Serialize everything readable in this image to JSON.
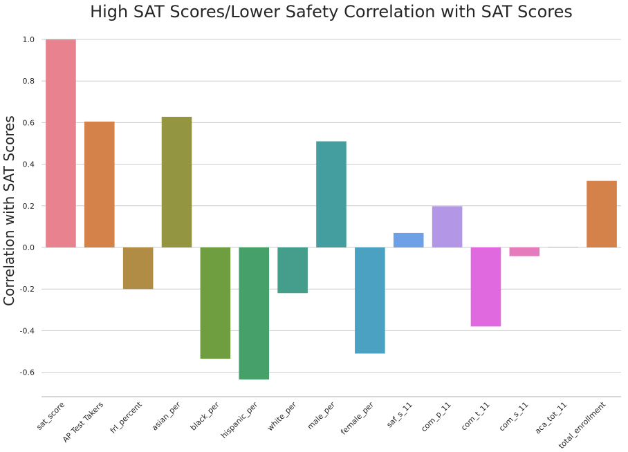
{
  "chart_data": {
    "type": "bar",
    "title": "High SAT Scores/Lower Safety Correlation with SAT Scores",
    "xlabel": "",
    "ylabel": "Correlation with SAT Scores",
    "ylim": [
      -0.72,
      1.0
    ],
    "yticks": [
      -0.6,
      -0.4,
      -0.2,
      0.0,
      0.2,
      0.4,
      0.6,
      0.8,
      1.0
    ],
    "ytick_labels": [
      "-0.6",
      "-0.4",
      "-0.2",
      "0.0",
      "0.2",
      "0.4",
      "0.6",
      "0.8",
      "1.0"
    ],
    "grid": true,
    "categories": [
      "sat_score",
      "AP Test Takers",
      "frl_percent",
      "asian_per",
      "black_per",
      "hispanic_per",
      "white_per",
      "male_per",
      "female_per",
      "saf_s_11",
      "com_p_11",
      "com_t_11",
      "com_s_11",
      "aca_tot_11",
      "total_enrollment"
    ],
    "values": [
      1.0,
      0.605,
      -0.2,
      0.628,
      -0.535,
      -0.635,
      -0.22,
      0.51,
      -0.51,
      0.07,
      0.198,
      -0.38,
      -0.042,
      0.002,
      0.32
    ],
    "colors": [
      "#e8828f",
      "#d5824a",
      "#b18c44",
      "#939540",
      "#6e9e40",
      "#45a06a",
      "#459d8c",
      "#449ea0",
      "#4aa1c1",
      "#6ea0e5",
      "#b396e6",
      "#e069e0",
      "#e67bbb",
      "#e8828f",
      "#d5824a"
    ]
  }
}
